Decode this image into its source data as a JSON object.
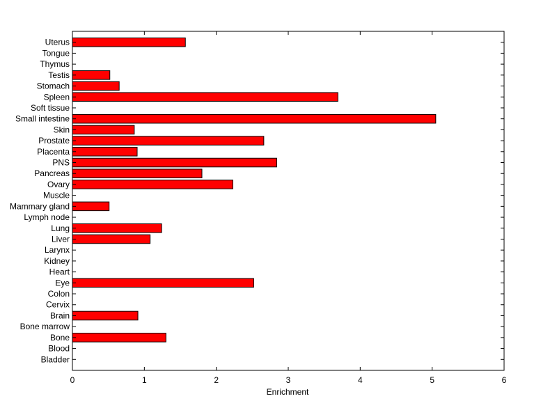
{
  "chart_data": {
    "type": "bar",
    "orientation": "horizontal",
    "categories": [
      "Uterus",
      "Tongue",
      "Thymus",
      "Testis",
      "Stomach",
      "Spleen",
      "Soft tissue",
      "Small intestine",
      "Skin",
      "Prostate",
      "Placenta",
      "PNS",
      "Pancreas",
      "Ovary",
      "Muscle",
      "Mammary gland",
      "Lymph node",
      "Lung",
      "Liver",
      "Larynx",
      "Kidney",
      "Heart",
      "Eye",
      "Colon",
      "Cervix",
      "Brain",
      "Bone marrow",
      "Bone",
      "Blood",
      "Bladder"
    ],
    "values": [
      1.57,
      0,
      0,
      0.52,
      0.65,
      3.69,
      0,
      5.05,
      0.86,
      2.66,
      0.9,
      2.84,
      1.8,
      2.23,
      0,
      0.51,
      0,
      1.24,
      1.08,
      0,
      0,
      0,
      2.52,
      0,
      0,
      0.91,
      0,
      1.3,
      0,
      0
    ],
    "xlabel": "Enrichment",
    "ylabel": "",
    "title": "",
    "xlim": [
      0,
      6
    ],
    "xticks": [
      0,
      1,
      2,
      3,
      4,
      5,
      6
    ],
    "grid": false,
    "bar_color": "#ff0000",
    "edge_color": "#000000"
  }
}
